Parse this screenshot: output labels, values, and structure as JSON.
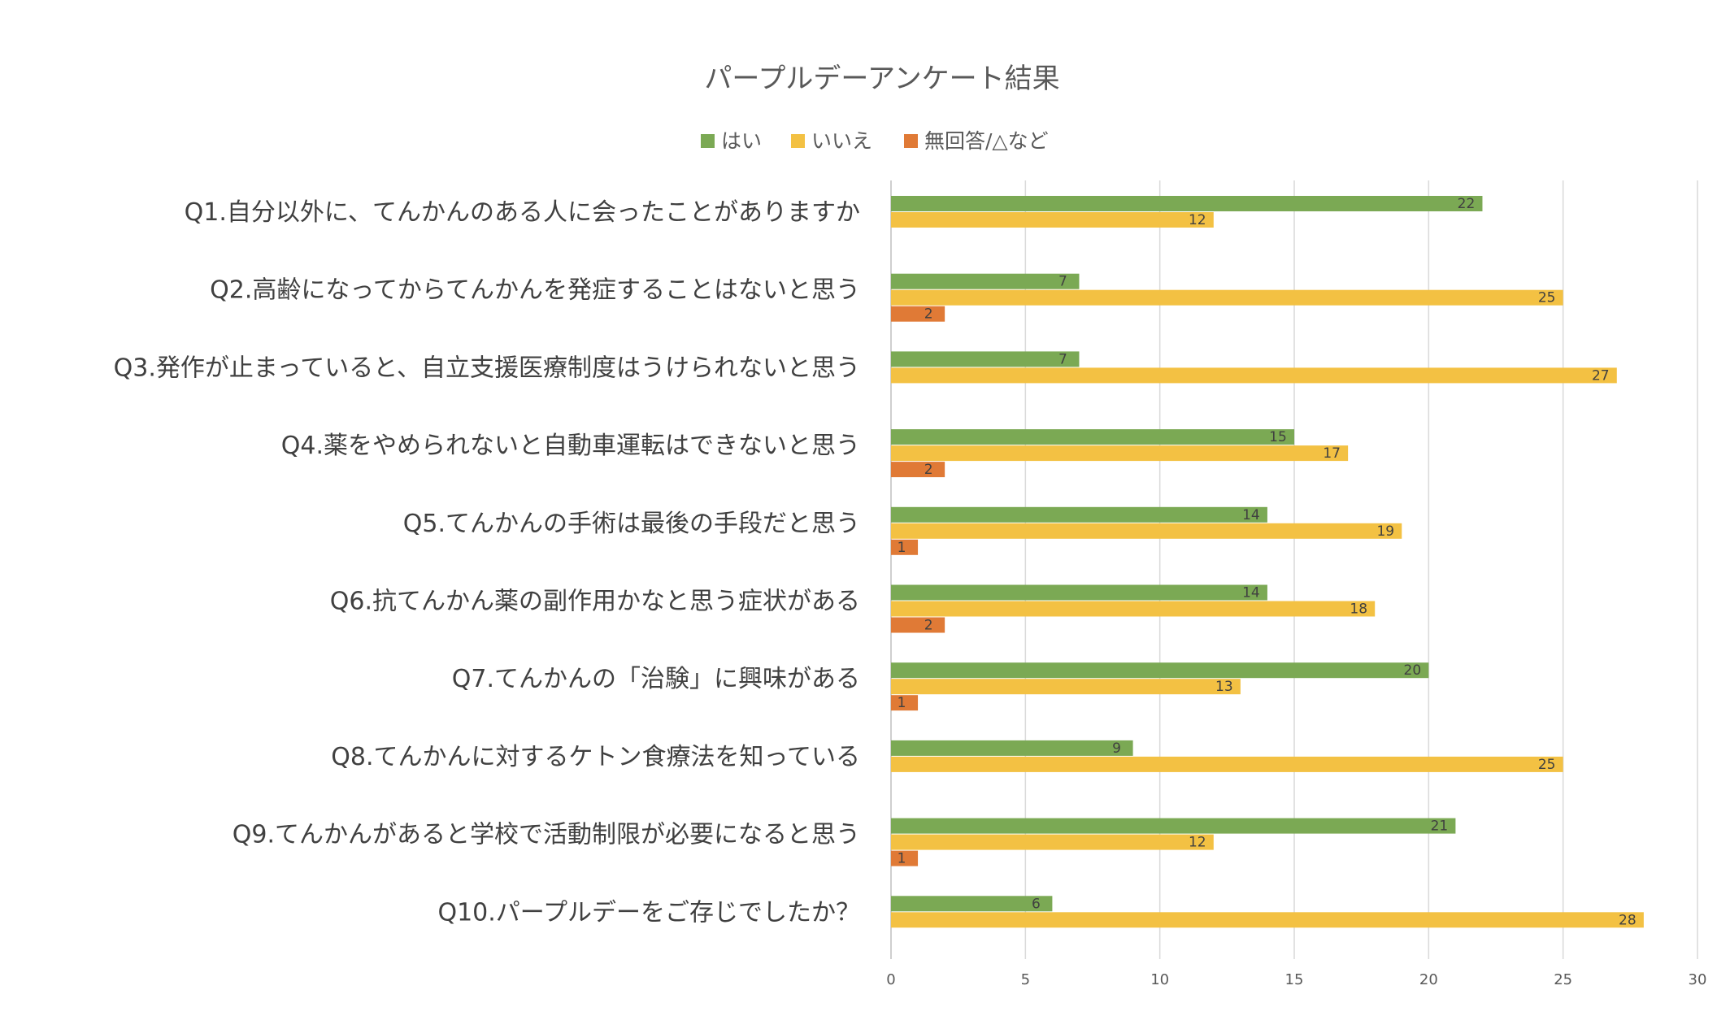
{
  "chart_data": {
    "type": "bar",
    "orientation": "horizontal",
    "title": "パープルデーアンケート結果",
    "xlabel": "",
    "ylabel": "",
    "xlim": [
      0,
      30
    ],
    "xticks": [
      0,
      5,
      10,
      15,
      20,
      25,
      30
    ],
    "grid": true,
    "legend_position": "top",
    "categories": [
      "Q1.自分以外に、てんかんのある人に会ったことがありますか",
      "Q2.高齢になってからてんかんを発症することはないと思う",
      "Q3.発作が止まっていると、自立支援医療制度はうけられないと思う",
      "Q4.薬をやめられないと自動車運転はできないと思う",
      "Q5.てんかんの手術は最後の手段だと思う",
      "Q6.抗てんかん薬の副作用かなと思う症状がある",
      "Q7.てんかんの「治験」に興味がある",
      "Q8.てんかんに対するケトン食療法を知っている",
      "Q9.てんかんがあると学校で活動制限が必要になると思う",
      "Q10.パープルデーをご存じでしたか？"
    ],
    "series": [
      {
        "name": "はい",
        "color": "#7ba954",
        "values": [
          22,
          7,
          7,
          15,
          14,
          14,
          20,
          9,
          21,
          6
        ]
      },
      {
        "name": "いいえ",
        "color": "#f3c143",
        "values": [
          12,
          25,
          27,
          17,
          19,
          18,
          13,
          25,
          12,
          28
        ]
      },
      {
        "name": "無回答/△など",
        "color": "#e07a36",
        "values": [
          null,
          2,
          null,
          2,
          1,
          2,
          1,
          null,
          1,
          null
        ]
      }
    ]
  }
}
